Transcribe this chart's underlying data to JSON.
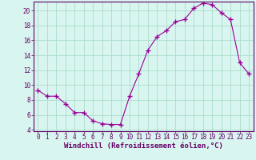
{
  "hours": [
    0,
    1,
    2,
    3,
    4,
    5,
    6,
    7,
    8,
    9,
    10,
    11,
    12,
    13,
    14,
    15,
    16,
    17,
    18,
    19,
    20,
    21,
    22,
    23
  ],
  "values": [
    9.3,
    8.5,
    8.5,
    7.5,
    6.3,
    6.3,
    5.2,
    4.8,
    4.7,
    4.7,
    8.5,
    11.5,
    14.7,
    16.5,
    17.3,
    18.5,
    18.8,
    20.3,
    21.0,
    20.8,
    19.7,
    18.8,
    13.0,
    11.5
  ],
  "line_color": "#990099",
  "marker": "+",
  "marker_size": 4,
  "bg_color": "#d8f5f0",
  "grid_color": "#aaddcc",
  "xlabel": "Windchill (Refroidissement éolien,°C)",
  "xlim_min": -0.5,
  "xlim_max": 23.5,
  "ylim_min": 3.8,
  "ylim_max": 21.2,
  "yticks": [
    4,
    6,
    8,
    10,
    12,
    14,
    16,
    18,
    20
  ],
  "xticks": [
    0,
    1,
    2,
    3,
    4,
    5,
    6,
    7,
    8,
    9,
    10,
    11,
    12,
    13,
    14,
    15,
    16,
    17,
    18,
    19,
    20,
    21,
    22,
    23
  ],
  "tick_label_fontsize": 5.5,
  "xlabel_fontsize": 6.5,
  "line_color_hex": "#880088",
  "spine_color": "#660066"
}
